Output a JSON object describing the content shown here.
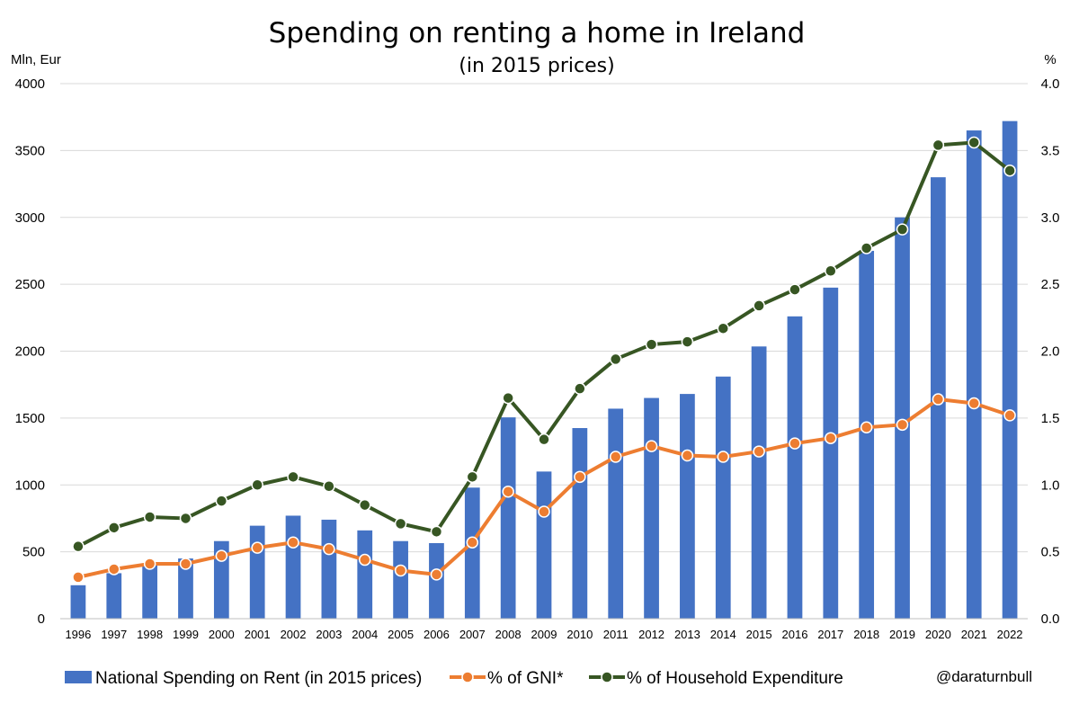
{
  "chart_data": {
    "type": "bar",
    "title": "Spending on renting a home in Ireland",
    "subtitle": "(in 2015 prices)",
    "ylabel": "Mln, Eur",
    "y2label": "%",
    "ylim": [
      0,
      4000
    ],
    "y2lim": [
      0,
      4
    ],
    "yticks": [
      "0",
      "500",
      "1000",
      "1500",
      "2000",
      "2500",
      "3000",
      "3500",
      "4000"
    ],
    "y2ticks": [
      "0.0",
      "0.5",
      "1.0",
      "1.5",
      "2.0",
      "2.5",
      "3.0",
      "3.5",
      "4.0"
    ],
    "grid": true,
    "legend_position": "bottom",
    "categories": [
      "1996",
      "1997",
      "1998",
      "1999",
      "2000",
      "2001",
      "2002",
      "2003",
      "2004",
      "2005",
      "2006",
      "2007",
      "2008",
      "2009",
      "2010",
      "2011",
      "2012",
      "2013",
      "2014",
      "2015",
      "2016",
      "2017",
      "2018",
      "2019",
      "2020",
      "2021",
      "2022"
    ],
    "series": [
      {
        "name": "National Spending on Rent (in 2015 prices)",
        "type": "bar",
        "axis": "left",
        "color": "#4472c4",
        "values": [
          250,
          340,
          410,
          450,
          580,
          695,
          770,
          740,
          660,
          580,
          565,
          980,
          1505,
          1100,
          1425,
          1570,
          1650,
          1680,
          1810,
          2035,
          2260,
          2475,
          2750,
          3000,
          3300,
          3650,
          3720
        ]
      },
      {
        "name": "% of GNI*",
        "type": "line",
        "axis": "right",
        "color": "#ed7d31",
        "values": [
          0.31,
          0.37,
          0.41,
          0.41,
          0.47,
          0.53,
          0.57,
          0.52,
          0.44,
          0.36,
          0.33,
          0.57,
          0.95,
          0.8,
          1.06,
          1.21,
          1.29,
          1.22,
          1.21,
          1.25,
          1.31,
          1.35,
          1.43,
          1.45,
          1.64,
          1.61,
          1.52
        ]
      },
      {
        "name": "% of Household Expenditure",
        "type": "line",
        "axis": "right",
        "color": "#375623",
        "values": [
          0.54,
          0.68,
          0.76,
          0.75,
          0.88,
          1.0,
          1.06,
          0.99,
          0.85,
          0.71,
          0.65,
          1.06,
          1.65,
          1.34,
          1.72,
          1.94,
          2.05,
          2.07,
          2.17,
          2.34,
          2.46,
          2.6,
          2.77,
          2.91,
          3.54,
          3.56,
          3.35
        ]
      }
    ],
    "credit": "@daraturnbull"
  }
}
